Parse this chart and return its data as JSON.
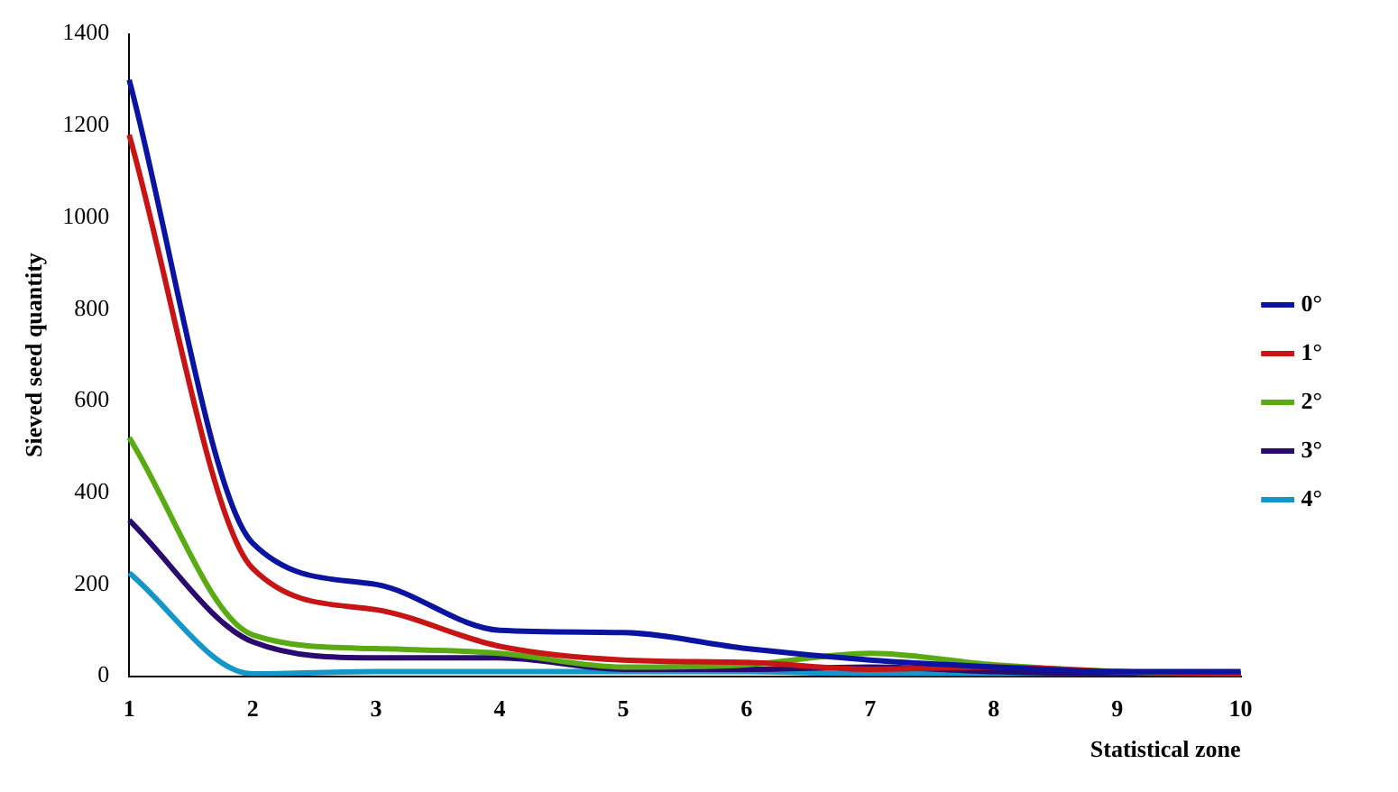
{
  "chart_data": {
    "type": "line",
    "xlabel": "Statistical zone",
    "ylabel": "Sieved seed quantity",
    "categories": [
      "1",
      "2",
      "3",
      "4",
      "5",
      "6",
      "7",
      "8",
      "9",
      "10"
    ],
    "ylim": [
      0,
      1400
    ],
    "yticks": [
      0,
      200,
      400,
      600,
      800,
      1000,
      1200,
      1400
    ],
    "grid": false,
    "legend": "right",
    "marker": "none",
    "line_style": "solid",
    "series": [
      {
        "name": "0°",
        "color": "#0a14a0",
        "values": [
          1300,
          290,
          200,
          100,
          95,
          60,
          35,
          20,
          10,
          10
        ]
      },
      {
        "name": "1°",
        "color": "#c81414",
        "values": [
          1180,
          235,
          145,
          65,
          35,
          30,
          15,
          20,
          10,
          5
        ]
      },
      {
        "name": "2°",
        "color": "#5aaa14",
        "values": [
          520,
          90,
          60,
          50,
          20,
          25,
          50,
          25,
          10,
          5
        ]
      },
      {
        "name": "3°",
        "color": "#2a0a6e",
        "values": [
          340,
          75,
          40,
          40,
          15,
          15,
          20,
          10,
          5,
          5
        ]
      },
      {
        "name": "4°",
        "color": "#1496c8",
        "values": [
          225,
          5,
          10,
          10,
          10,
          10,
          5,
          5,
          5,
          5
        ]
      }
    ]
  }
}
